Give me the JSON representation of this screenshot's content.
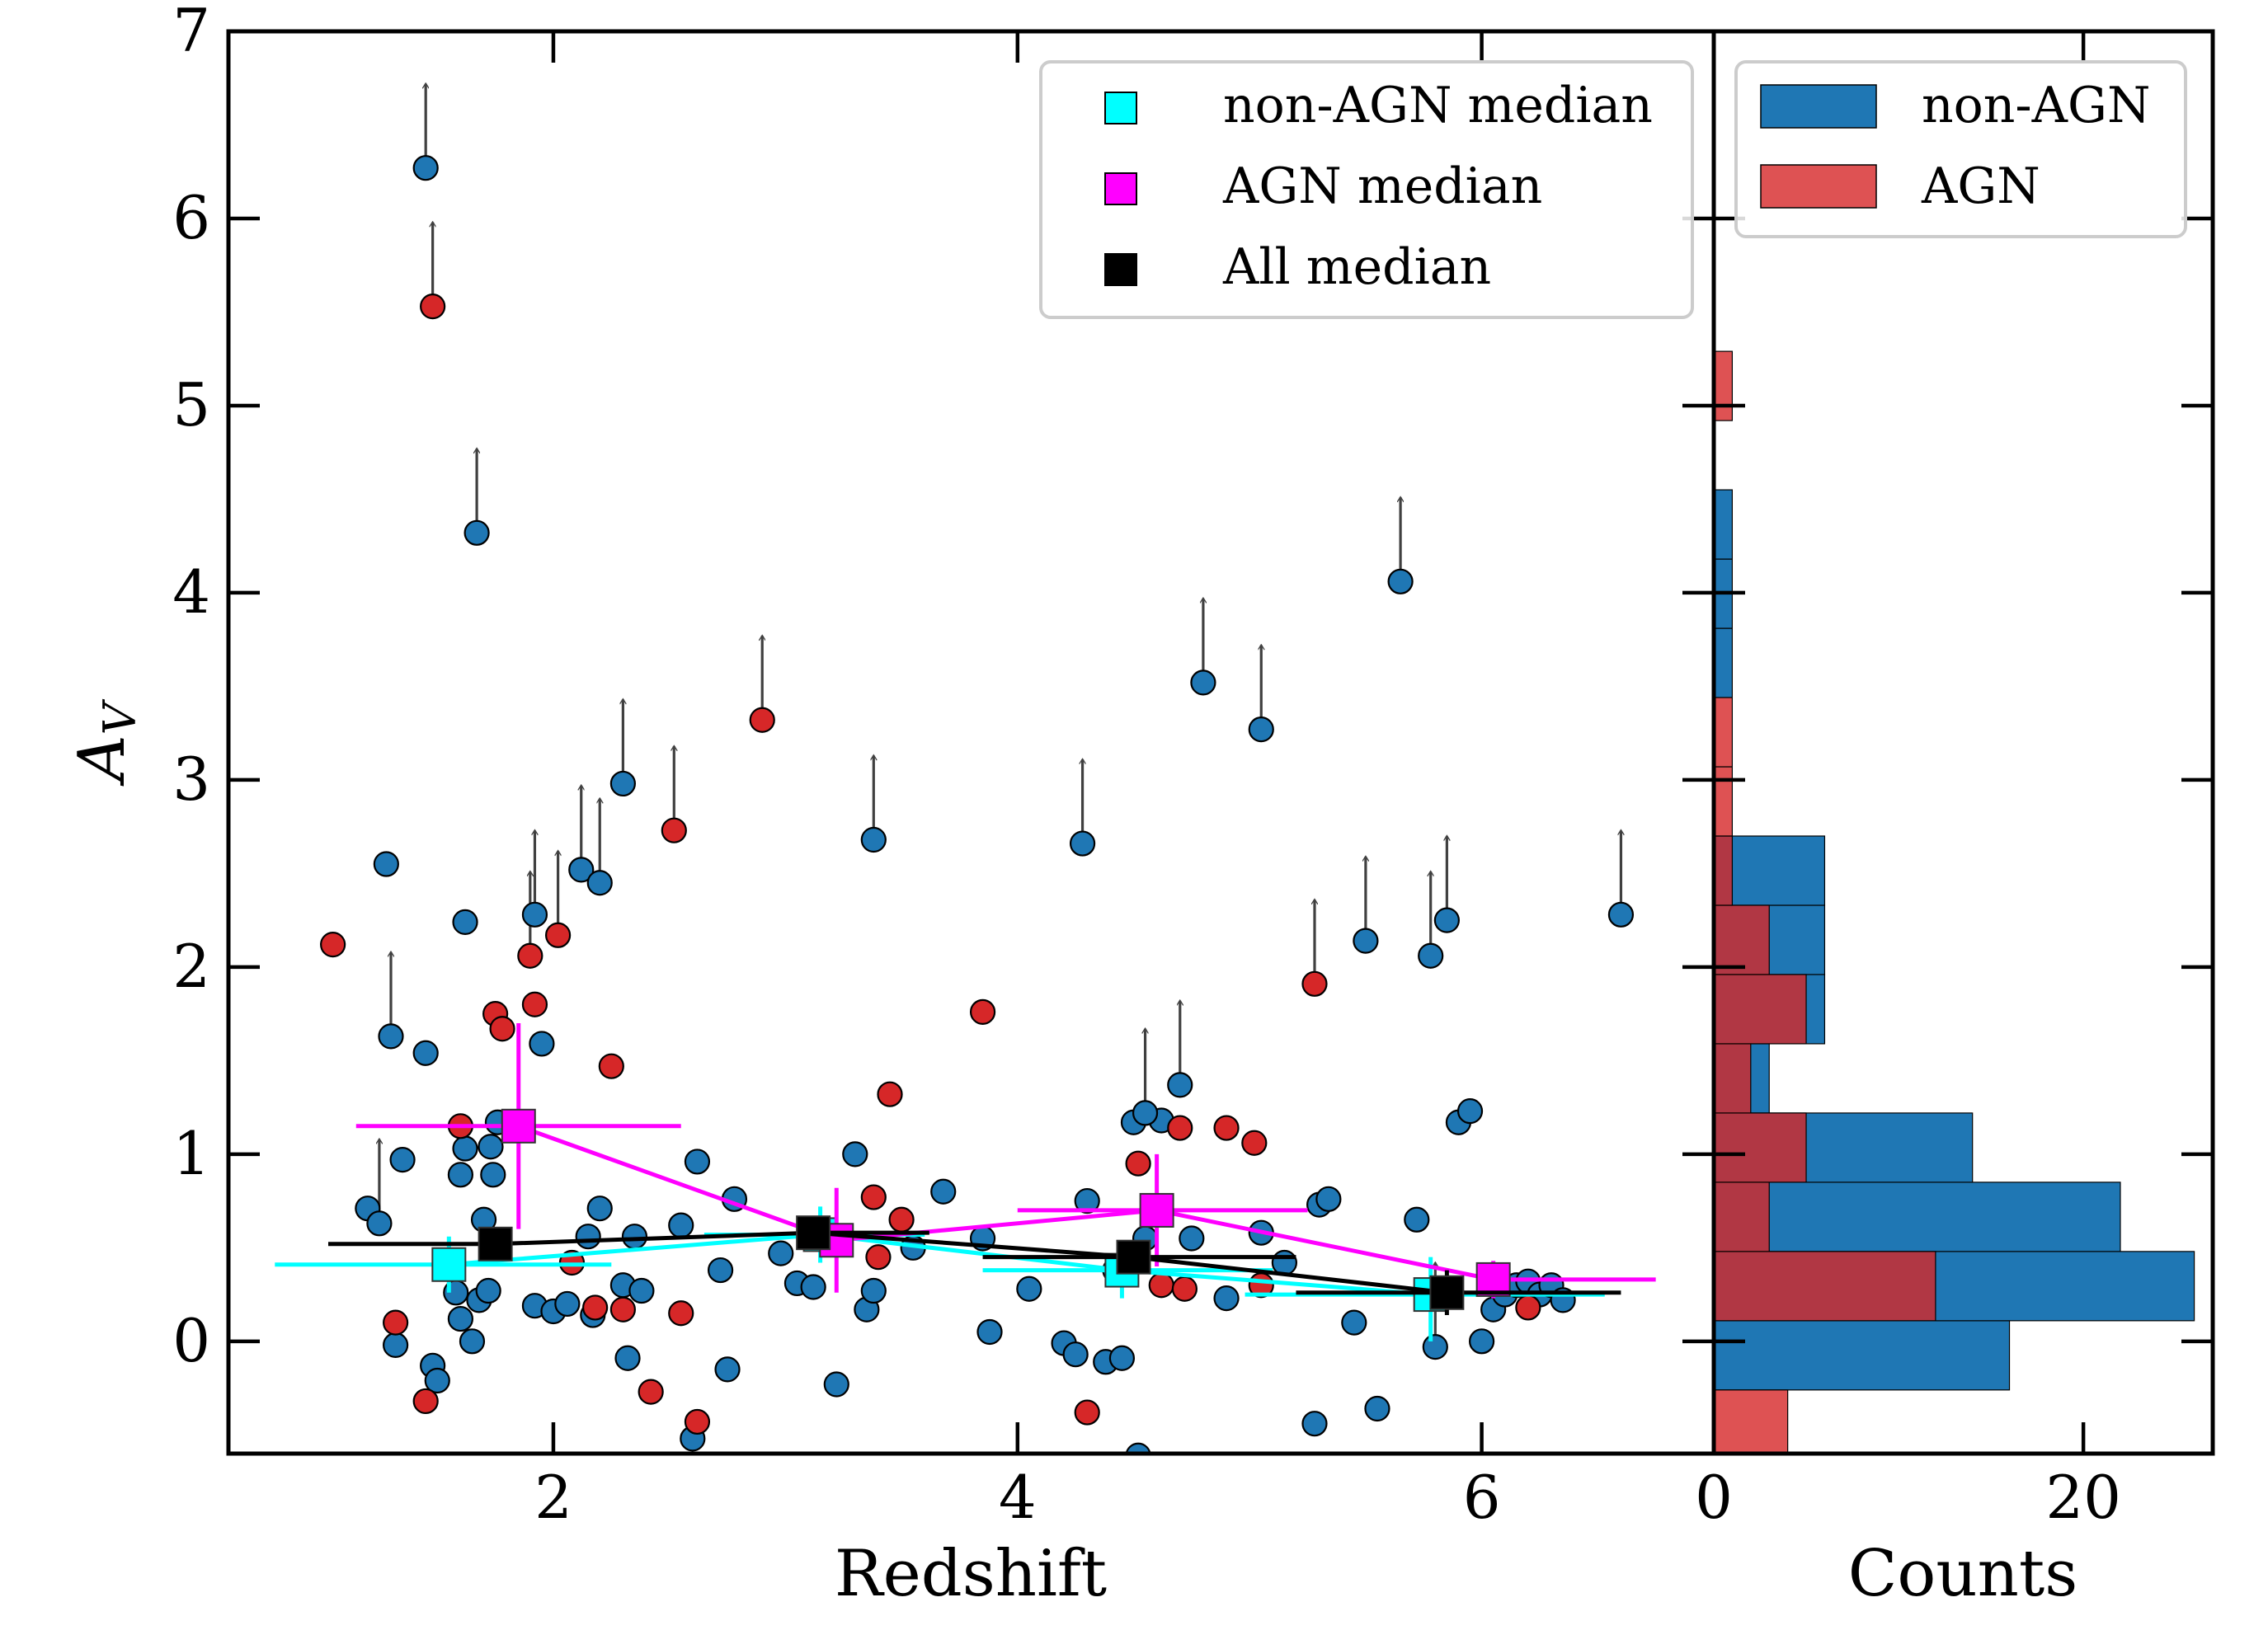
{
  "chart_data": [
    {
      "type": "scatter",
      "xlabel": "Redshift",
      "ylabel_main": "A",
      "ylabel_sub": "V",
      "xlim": [
        0.6,
        7.0
      ],
      "ylim": [
        -0.6,
        7.0
      ],
      "xticks": [
        2,
        4,
        6
      ],
      "yticks": [
        0,
        1,
        2,
        3,
        4,
        5,
        6,
        7
      ],
      "xtick_labels": [
        "2",
        "4",
        "6"
      ],
      "ytick_labels": [
        "0",
        "1",
        "2",
        "3",
        "4",
        "5",
        "6",
        "7"
      ],
      "colors": {
        "nonagn": "#1f77b4",
        "agn": "#d62728",
        "nonagn_median": "#00ffff",
        "agn_median": "#ff00ff",
        "all_median": "#000000",
        "arrow": "#404040"
      },
      "nonagn_points": [
        [
          1.2,
          0.71
        ],
        [
          1.28,
          2.55
        ],
        [
          1.32,
          -0.02
        ],
        [
          1.35,
          0.97
        ],
        [
          1.45,
          1.54
        ],
        [
          1.48,
          -0.13
        ],
        [
          1.5,
          -0.21
        ],
        [
          1.58,
          0.26
        ],
        [
          1.6,
          0.12
        ],
        [
          1.6,
          0.89
        ],
        [
          1.62,
          1.03
        ],
        [
          1.62,
          2.24
        ],
        [
          1.65,
          0.0
        ],
        [
          1.68,
          0.22
        ],
        [
          1.7,
          0.65
        ],
        [
          1.72,
          0.27
        ],
        [
          1.73,
          1.04
        ],
        [
          1.74,
          0.89
        ],
        [
          1.76,
          1.17
        ],
        [
          1.92,
          0.19
        ],
        [
          1.95,
          1.59
        ],
        [
          2.0,
          0.16
        ],
        [
          2.06,
          0.2
        ],
        [
          2.15,
          0.56
        ],
        [
          2.17,
          0.14
        ],
        [
          2.2,
          0.71
        ],
        [
          2.3,
          0.3
        ],
        [
          2.35,
          0.56
        ],
        [
          2.38,
          0.27
        ],
        [
          2.32,
          -0.09
        ],
        [
          2.55,
          0.62
        ],
        [
          2.6,
          -0.52
        ],
        [
          2.62,
          0.96
        ],
        [
          2.72,
          0.38
        ],
        [
          2.75,
          -0.15
        ],
        [
          2.78,
          0.76
        ],
        [
          2.98,
          0.47
        ],
        [
          3.05,
          0.31
        ],
        [
          3.12,
          0.29
        ],
        [
          3.22,
          -0.23
        ],
        [
          3.3,
          1.0
        ],
        [
          3.35,
          0.17
        ],
        [
          3.38,
          0.27
        ],
        [
          3.55,
          0.5
        ],
        [
          3.68,
          0.8
        ],
        [
          3.85,
          0.55
        ],
        [
          3.88,
          0.05
        ],
        [
          4.05,
          0.28
        ],
        [
          4.2,
          -0.01
        ],
        [
          4.25,
          -0.07
        ],
        [
          4.3,
          0.75
        ],
        [
          4.38,
          -0.11
        ],
        [
          4.42,
          0.38
        ],
        [
          4.45,
          -0.09
        ],
        [
          4.5,
          1.17
        ],
        [
          4.52,
          -0.61
        ],
        [
          4.55,
          0.55
        ],
        [
          4.62,
          1.18
        ],
        [
          4.75,
          0.55
        ],
        [
          4.9,
          0.23
        ],
        [
          5.05,
          0.58
        ],
        [
          5.15,
          0.42
        ],
        [
          5.3,
          0.73
        ],
        [
          5.34,
          0.76
        ],
        [
          5.28,
          -0.44
        ],
        [
          5.45,
          0.1
        ],
        [
          5.55,
          -0.36
        ],
        [
          5.72,
          0.65
        ],
        [
          5.9,
          1.17
        ],
        [
          5.95,
          1.23
        ],
        [
          6.0,
          0.0
        ],
        [
          6.05,
          0.17
        ],
        [
          6.1,
          0.25
        ],
        [
          6.15,
          0.3
        ],
        [
          6.2,
          0.32
        ],
        [
          6.25,
          0.25
        ],
        [
          6.3,
          0.3
        ],
        [
          6.35,
          0.22
        ]
      ],
      "agn_points": [
        [
          1.05,
          2.12
        ],
        [
          1.32,
          0.1
        ],
        [
          1.45,
          -0.32
        ],
        [
          1.6,
          1.15
        ],
        [
          1.75,
          1.75
        ],
        [
          1.78,
          1.67
        ],
        [
          1.92,
          1.8
        ],
        [
          2.08,
          0.42
        ],
        [
          2.18,
          0.18
        ],
        [
          2.25,
          1.47
        ],
        [
          2.3,
          0.17
        ],
        [
          2.42,
          -0.27
        ],
        [
          2.55,
          0.15
        ],
        [
          2.62,
          -0.43
        ],
        [
          3.38,
          0.77
        ],
        [
          3.4,
          0.45
        ],
        [
          3.45,
          1.32
        ],
        [
          3.5,
          0.65
        ],
        [
          3.85,
          1.76
        ],
        [
          4.3,
          -0.38
        ],
        [
          4.52,
          0.95
        ],
        [
          4.62,
          0.3
        ],
        [
          4.7,
          1.14
        ],
        [
          4.72,
          0.28
        ],
        [
          4.9,
          1.14
        ],
        [
          5.02,
          1.06
        ],
        [
          5.05,
          0.3
        ],
        [
          6.2,
          0.18
        ]
      ],
      "nonagn_limits": [
        [
          1.25,
          0.63
        ],
        [
          1.3,
          1.63
        ],
        [
          1.45,
          6.27
        ],
        [
          1.67,
          4.32
        ],
        [
          1.92,
          2.28
        ],
        [
          2.12,
          2.52
        ],
        [
          2.2,
          2.45
        ],
        [
          2.3,
          2.98
        ],
        [
          3.38,
          2.68
        ],
        [
          4.28,
          2.66
        ],
        [
          4.8,
          3.52
        ],
        [
          5.05,
          3.27
        ],
        [
          5.5,
          2.14
        ],
        [
          5.65,
          4.06
        ],
        [
          5.78,
          2.06
        ],
        [
          5.85,
          2.25
        ],
        [
          4.55,
          1.22
        ],
        [
          4.7,
          1.37
        ],
        [
          5.8,
          -0.03
        ],
        [
          6.6,
          2.28
        ]
      ],
      "agn_limits": [
        [
          1.48,
          5.53
        ],
        [
          1.9,
          2.06
        ],
        [
          2.02,
          2.17
        ],
        [
          2.52,
          2.73
        ],
        [
          2.9,
          3.32
        ],
        [
          5.28,
          1.91
        ]
      ],
      "medians": {
        "nonagn": [
          {
            "x": 1.55,
            "y": 0.41,
            "xerr": [
              0.75,
              0.7
            ],
            "yerr": [
              0.15,
              0.15
            ]
          },
          {
            "x": 3.15,
            "y": 0.57,
            "xerr": [
              0.5,
              0.45
            ],
            "yerr": [
              0.15,
              0.15
            ]
          },
          {
            "x": 4.45,
            "y": 0.38,
            "xerr": [
              0.6,
              0.65
            ],
            "yerr": [
              0.15,
              0.15
            ]
          },
          {
            "x": 5.78,
            "y": 0.25,
            "xerr": [
              0.8,
              0.75
            ],
            "yerr": [
              0.25,
              0.2
            ]
          }
        ],
        "agn": [
          {
            "x": 1.85,
            "y": 1.15,
            "xerr": [
              0.7,
              0.7
            ],
            "yerr": [
              0.55,
              0.55
            ]
          },
          {
            "x": 3.22,
            "y": 0.54,
            "xerr": [
              0.0,
              0.0
            ],
            "yerr": [
              0.28,
              0.28
            ]
          },
          {
            "x": 4.6,
            "y": 0.7,
            "xerr": [
              0.6,
              0.65
            ],
            "yerr": [
              0.3,
              0.3
            ]
          },
          {
            "x": 6.05,
            "y": 0.33,
            "xerr": [
              0.0,
              0.7
            ],
            "yerr": [
              0.1,
              0.1
            ]
          }
        ],
        "all": [
          {
            "x": 1.75,
            "y": 0.52,
            "xerr": [
              0.72,
              0.0
            ],
            "yerr": [
              0.08,
              0.08
            ]
          },
          {
            "x": 3.12,
            "y": 0.58,
            "xerr": [
              0.0,
              0.5
            ],
            "yerr": [
              0.08,
              0.08
            ]
          },
          {
            "x": 4.5,
            "y": 0.45,
            "xerr": [
              0.65,
              0.7
            ],
            "yerr": [
              0.08,
              0.08
            ]
          },
          {
            "x": 5.85,
            "y": 0.26,
            "xerr": [
              0.65,
              0.75
            ],
            "yerr": [
              0.12,
              0.12
            ]
          }
        ]
      },
      "legend": {
        "position": "upper-right",
        "entries": [
          "non-AGN median",
          "AGN median",
          "All median"
        ]
      }
    },
    {
      "type": "bar",
      "orientation": "horizontal",
      "xlabel": "Counts",
      "xlim": [
        0,
        27
      ],
      "ylim": [
        -0.6,
        7.0
      ],
      "xticks": [
        0,
        20
      ],
      "xtick_labels": [
        "0",
        "20"
      ],
      "bin_edges": [
        -0.6,
        -0.26,
        0.11,
        0.48,
        0.85,
        1.22,
        1.59,
        1.96,
        2.33,
        2.7,
        3.07,
        3.44,
        3.81,
        4.18,
        4.55,
        4.92,
        5.29,
        5.66
      ],
      "series": [
        {
          "name": "non-AGN",
          "color": "#1f77b4",
          "values": [
            0,
            16,
            26,
            22,
            14,
            3,
            6,
            6,
            6,
            0,
            0,
            1,
            1,
            1,
            0,
            0,
            0
          ]
        },
        {
          "name": "AGN",
          "color": "#d62728",
          "values": [
            4,
            0,
            12,
            3,
            5,
            2,
            5,
            3,
            1,
            1,
            1,
            0,
            0,
            0,
            0,
            1,
            0
          ]
        }
      ],
      "legend": {
        "position": "upper-right",
        "entries": [
          "non-AGN",
          "AGN"
        ]
      }
    }
  ]
}
